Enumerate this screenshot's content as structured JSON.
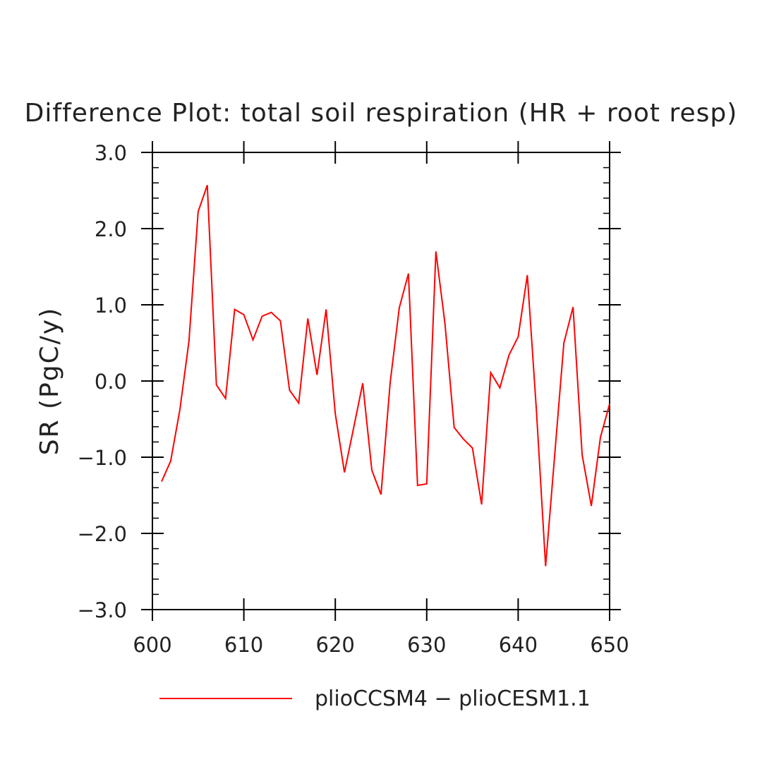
{
  "chart_data": {
    "type": "line",
    "title": "Difference Plot: total soil respiration (HR + root resp)",
    "ylabel": "SR  (PgC/y)",
    "xlabel": "",
    "xlim": [
      600,
      650
    ],
    "ylim": [
      -3.0,
      3.0
    ],
    "x_ticks": [
      600,
      610,
      620,
      630,
      640,
      650
    ],
    "x_tick_labels": [
      "600",
      "610",
      "620",
      "630",
      "640",
      "650"
    ],
    "y_ticks": [
      -3.0,
      -2.0,
      -1.0,
      0.0,
      1.0,
      2.0,
      3.0
    ],
    "y_tick_labels": [
      "−3.0",
      "−2.0",
      "−1.0",
      "0.0",
      "1.0",
      "2.0",
      "3.0"
    ],
    "legend_position": "bottom",
    "series": [
      {
        "name": "plioCCSM4 − plioCESM1.1",
        "color": "#ff0000",
        "x": [
          601,
          602,
          603,
          604,
          605,
          606,
          607,
          608,
          609,
          610,
          611,
          612,
          613,
          614,
          615,
          616,
          617,
          618,
          619,
          620,
          621,
          622,
          623,
          624,
          625,
          626,
          627,
          628,
          629,
          630,
          631,
          632,
          633,
          634,
          635,
          636,
          637,
          638,
          639,
          640,
          641,
          642,
          643,
          644,
          645,
          646,
          647,
          648,
          649,
          650
        ],
        "values": [
          -1.32,
          -1.05,
          -0.38,
          0.52,
          2.22,
          2.57,
          -0.05,
          -0.23,
          0.94,
          0.87,
          0.54,
          0.85,
          0.9,
          0.79,
          -0.12,
          -0.29,
          0.82,
          0.08,
          0.94,
          -0.43,
          -1.2,
          -0.62,
          -0.03,
          -1.17,
          -1.49,
          -0.02,
          0.96,
          1.41,
          -1.37,
          -1.35,
          1.7,
          0.75,
          -0.61,
          -0.76,
          -0.88,
          -1.62,
          0.11,
          -0.09,
          0.34,
          0.58,
          1.39,
          -0.39,
          -2.43,
          -0.97,
          0.5,
          0.97,
          -0.97,
          -1.64,
          -0.74,
          -0.3
        ]
      }
    ]
  }
}
